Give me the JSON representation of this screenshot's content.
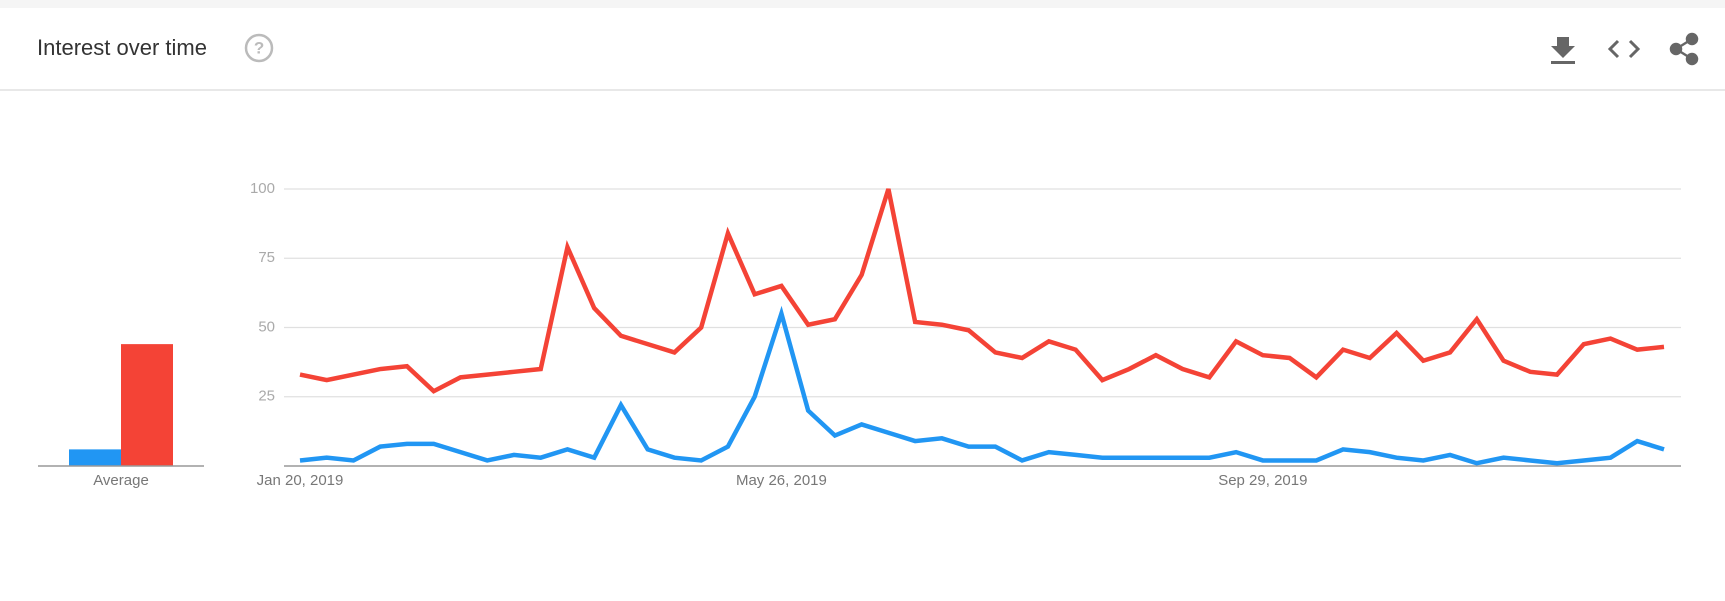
{
  "chart_data": {
    "type": "line",
    "title": "Interest over time",
    "average_label": "Average",
    "categories": [
      "Jan 20, 2019",
      null,
      null,
      null,
      null,
      null,
      null,
      null,
      null,
      null,
      null,
      null,
      null,
      null,
      null,
      null,
      null,
      null,
      "May 26, 2019",
      null,
      null,
      null,
      null,
      null,
      null,
      null,
      null,
      null,
      null,
      null,
      null,
      null,
      null,
      null,
      null,
      null,
      "Sep 29, 2019",
      null,
      null,
      null,
      null,
      null,
      null,
      null,
      null,
      null,
      null,
      null,
      null,
      null,
      null,
      null
    ],
    "series": [
      {
        "color": "#2196f3",
        "average": 6,
        "values": [
          2,
          3,
          2,
          7,
          8,
          8,
          5,
          2,
          4,
          3,
          6,
          3,
          22,
          6,
          3,
          2,
          7,
          25,
          55,
          20,
          11,
          15,
          12,
          9,
          10,
          7,
          7,
          2,
          5,
          4,
          3,
          3,
          3,
          3,
          3,
          5,
          2,
          2,
          2,
          6,
          5,
          3,
          2,
          4,
          1,
          3,
          2,
          1,
          2,
          3,
          9,
          6
        ]
      },
      {
        "color": "#f44336",
        "average": 44,
        "values": [
          33,
          31,
          33,
          35,
          36,
          27,
          32,
          33,
          34,
          35,
          79,
          57,
          47,
          44,
          41,
          50,
          84,
          62,
          65,
          51,
          53,
          69,
          100,
          52,
          51,
          49,
          41,
          39,
          45,
          42,
          31,
          35,
          40,
          35,
          32,
          45,
          40,
          39,
          32,
          42,
          39,
          48,
          38,
          41,
          53,
          38,
          34,
          33,
          44,
          46,
          42,
          43
        ]
      }
    ],
    "ylim": [
      0,
      100
    ],
    "yticks": [
      25,
      50,
      75,
      100
    ],
    "grid": true
  }
}
